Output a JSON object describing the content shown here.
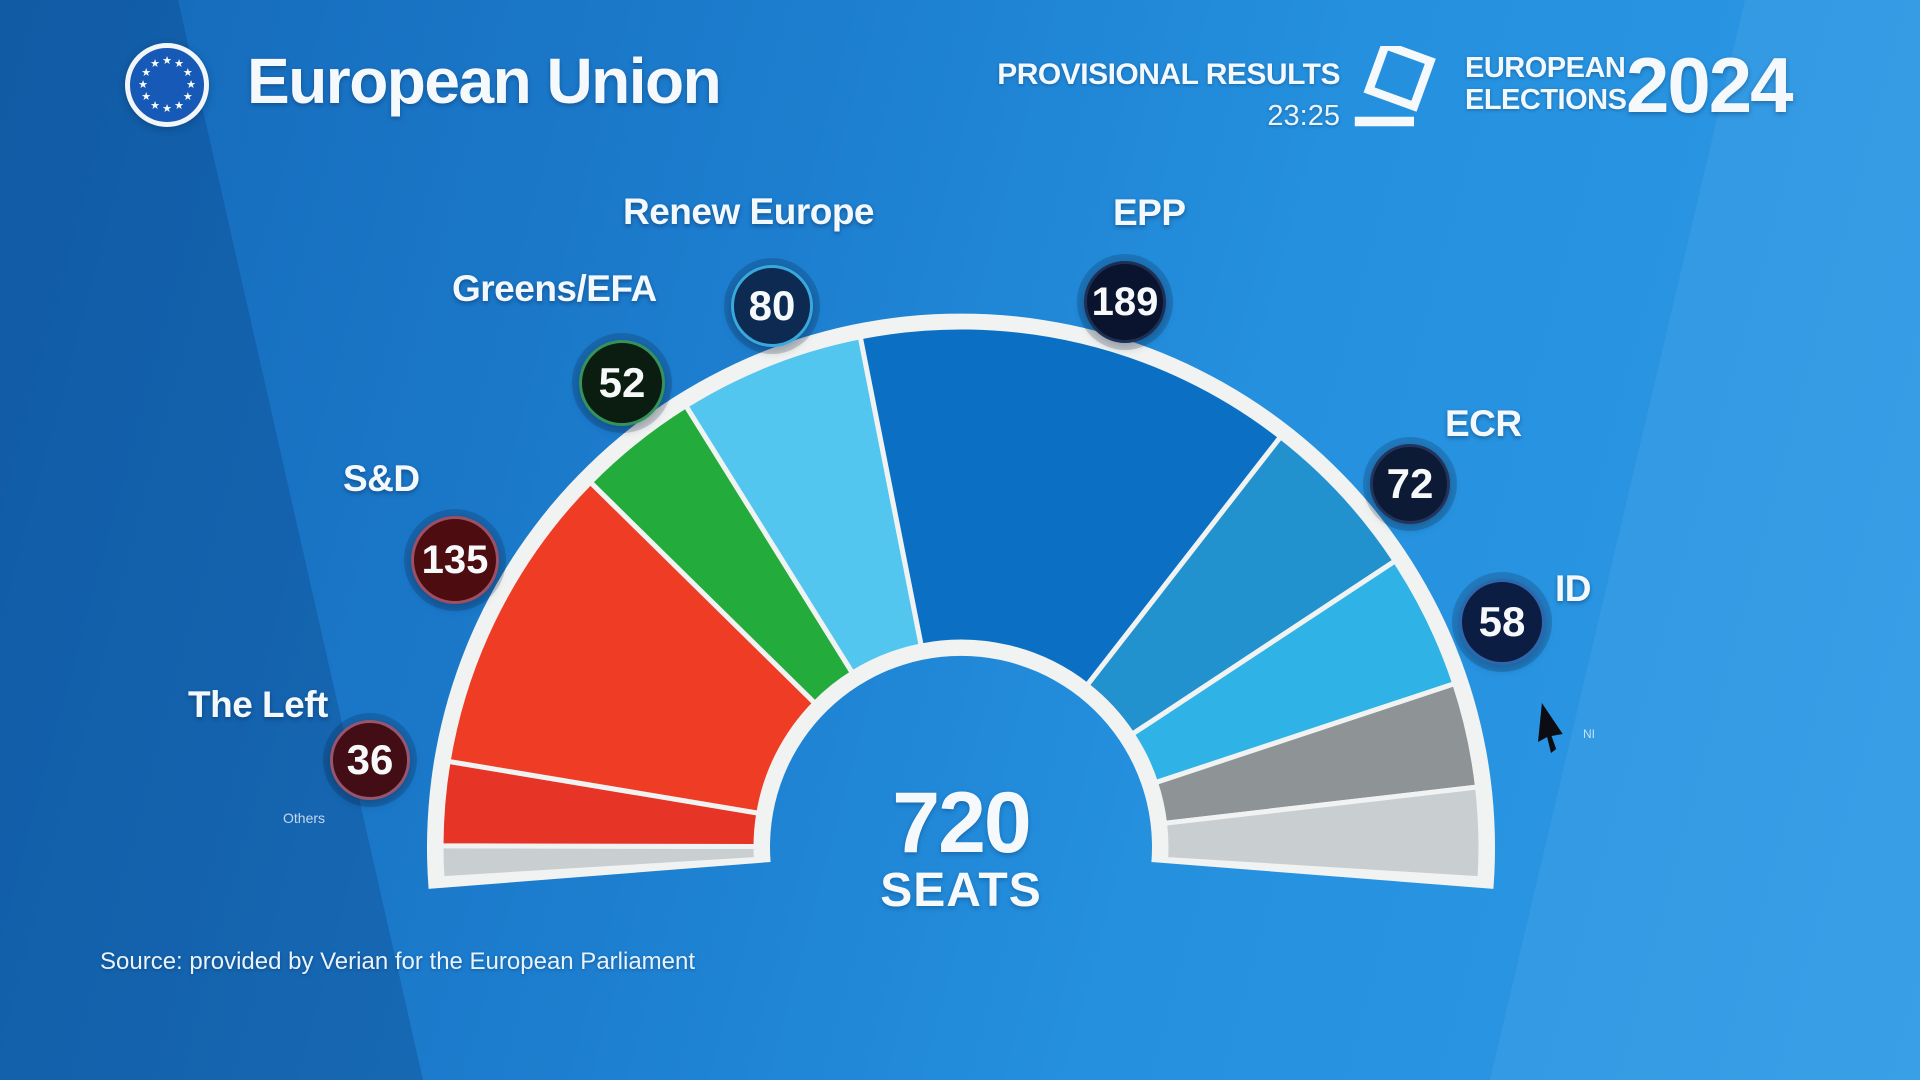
{
  "header": {
    "title": "European Union",
    "logo_icon": "eu-flag-roundel"
  },
  "topbar": {
    "provisional_label": "PROVISIONAL RESULTS",
    "time": "23:25",
    "ballot_icon": "ballot-box-icon",
    "brand_line1": "EUROPEAN",
    "brand_line2": "ELECTIONS",
    "brand_year": "2024"
  },
  "center_total": {
    "value": "720",
    "unit": "SEATS"
  },
  "source_text": "Source: provided by Verian for the European Parliament",
  "faint_labels": {
    "left": "Others",
    "right": "NI"
  },
  "cursor_icon": "mouse-cursor-arrow",
  "colors": {
    "background_top": "#1568b8",
    "background_bottom": "#2e9ae6",
    "ring_white": "#f0f3f2"
  },
  "chart_data": {
    "type": "parliament-hemicycle",
    "title": "European Parliament seat projection — provisional results 23:25",
    "total_seats": 720,
    "arc_degrees": 187,
    "legend_position": "around-arc",
    "groups": [
      {
        "label": "The Left",
        "seats": 36,
        "badge_fill": "#420d14",
        "badge_ring": "#97566e"
      },
      {
        "label": "S&D",
        "seats": 135,
        "badge_fill": "#4c0c10",
        "badge_ring": "#9e4f63"
      },
      {
        "label": "Greens/EFA",
        "seats": 52,
        "badge_fill": "#0b1c10",
        "badge_ring": "#35925a"
      },
      {
        "label": "Renew Europe",
        "seats": 80,
        "badge_fill": "#0d2a52",
        "badge_ring": "#39a9dd"
      },
      {
        "label": "EPP",
        "seats": 189,
        "badge_fill": "#0a142e",
        "badge_ring": "#1d2f55"
      },
      {
        "label": "ECR",
        "seats": 72,
        "badge_fill": "#0d1a36",
        "badge_ring": "#22345c"
      },
      {
        "label": "ID",
        "seats": 58,
        "badge_fill": "#0c1d44",
        "badge_ring": "#2e66ad"
      }
    ],
    "segments": [
      {
        "label": "Others",
        "seats": 14,
        "color": "#c9ced1",
        "estimated": true
      },
      {
        "label": "The Left",
        "seats": 36,
        "color": "#e63427"
      },
      {
        "label": "S&D",
        "seats": 135,
        "color": "#ef3d25"
      },
      {
        "label": "Greens/EFA",
        "seats": 52,
        "color": "#23ab3c"
      },
      {
        "label": "Renew Europe",
        "seats": 80,
        "color": "#53c6ef"
      },
      {
        "label": "EPP",
        "seats": 189,
        "color": "#0b70c4"
      },
      {
        "label": "ECR",
        "seats": 72,
        "color": "#2292cf"
      },
      {
        "label": "ID",
        "seats": 58,
        "color": "#2fb2e5"
      },
      {
        "label": "NI",
        "seats": 45,
        "color": "#8e9396",
        "estimated": true
      },
      {
        "label": "Others",
        "seats": 39,
        "color": "#c9ced1",
        "estimated": true
      }
    ]
  }
}
